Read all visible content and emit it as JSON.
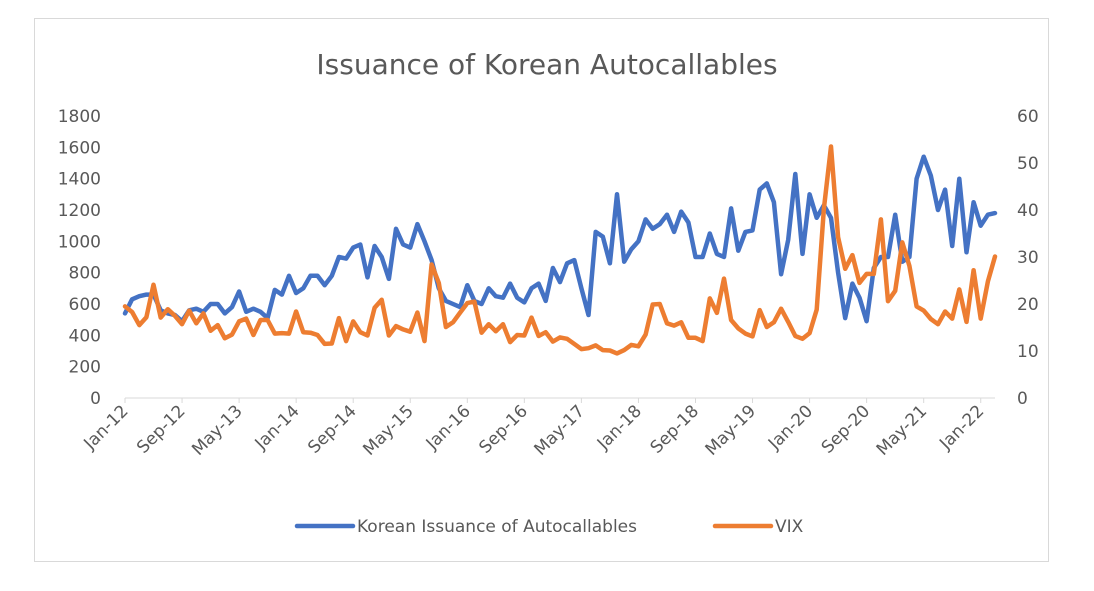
{
  "chart_data": {
    "type": "line",
    "title": "Issuance of Korean Autocallables",
    "xlabel": "",
    "ylabel": "",
    "y_left": {
      "range": [
        0,
        1800
      ],
      "ticks": [
        0,
        200,
        400,
        600,
        800,
        1000,
        1200,
        1400,
        1600,
        1800
      ]
    },
    "y_right": {
      "range": [
        0,
        60
      ],
      "ticks": [
        0,
        10,
        20,
        30,
        40,
        50,
        60
      ]
    },
    "x_tick_labels": [
      "Jan-12",
      "Sep-12",
      "May-13",
      "Jan-14",
      "Sep-14",
      "May-15",
      "Jan-16",
      "Sep-16",
      "May-17",
      "Jan-18",
      "Sep-18",
      "May-19",
      "Jan-20",
      "Sep-20",
      "May-21",
      "Jan-22"
    ],
    "x_start": "Jan-12",
    "x_end": "Mar-22",
    "grid": false,
    "legend_position": "bottom",
    "series": [
      {
        "name": "Korean Issuance of Autocallables",
        "axis": "left",
        "color": "#4472c4",
        "values": [
          540,
          630,
          650,
          660,
          660,
          560,
          540,
          530,
          490,
          560,
          570,
          550,
          600,
          600,
          540,
          580,
          680,
          550,
          570,
          550,
          510,
          690,
          660,
          780,
          670,
          700,
          780,
          780,
          720,
          780,
          900,
          890,
          960,
          980,
          770,
          970,
          900,
          760,
          1080,
          980,
          960,
          1110,
          1000,
          880,
          700,
          620,
          600,
          580,
          720,
          620,
          600,
          700,
          650,
          640,
          730,
          640,
          610,
          700,
          730,
          620,
          830,
          740,
          860,
          880,
          700,
          530,
          1060,
          1030,
          860,
          1300,
          870,
          950,
          1000,
          1140,
          1080,
          1110,
          1170,
          1060,
          1190,
          1120,
          900,
          900,
          1050,
          920,
          900,
          1210,
          940,
          1060,
          1070,
          1330,
          1370,
          1250,
          790,
          1010,
          1430,
          920,
          1300,
          1150,
          1230,
          1150,
          800,
          510,
          730,
          640,
          490,
          830,
          900,
          900,
          1170,
          870,
          900,
          1400,
          1540,
          1420,
          1200,
          1330,
          970,
          1400,
          930,
          1250,
          1100,
          1170,
          1180
        ]
      },
      {
        "name": "VIX",
        "axis": "right",
        "color": "#ed7d31",
        "values": [
          19.5,
          18.3,
          15.5,
          17.2,
          24.1,
          17.1,
          18.9,
          17.5,
          15.7,
          18.6,
          15.9,
          18.0,
          14.3,
          15.5,
          12.7,
          13.5,
          16.3,
          16.9,
          13.4,
          16.6,
          16.6,
          13.7,
          13.8,
          13.7,
          18.4,
          14.0,
          13.9,
          13.4,
          11.5,
          11.6,
          17.0,
          12.1,
          16.3,
          14.0,
          13.3,
          19.2,
          20.9,
          13.3,
          15.3,
          14.6,
          14.1,
          18.2,
          12.1,
          28.4,
          24.5,
          15.1,
          16.1,
          18.2,
          20.2,
          20.5,
          13.9,
          15.7,
          14.2,
          15.7,
          11.9,
          13.4,
          13.3,
          17.1,
          13.2,
          14.0,
          11.99,
          12.9,
          12.6,
          11.5,
          10.4,
          10.6,
          11.2,
          10.2,
          10.1,
          9.5,
          10.2,
          11.3,
          11.0,
          13.5,
          19.9,
          20.0,
          15.9,
          15.4,
          16.1,
          12.8,
          12.8,
          12.1,
          21.2,
          18.1,
          25.4,
          16.6,
          14.8,
          13.7,
          13.1,
          18.7,
          15.1,
          16.1,
          19.0,
          16.2,
          13.2,
          12.6,
          13.8,
          18.8,
          40.3,
          53.5,
          34.2,
          27.5,
          30.4,
          24.5,
          26.4,
          26.4,
          38.0,
          20.6,
          22.8,
          33.1,
          28.1,
          19.5,
          18.6,
          16.8,
          15.7,
          18.4,
          16.9,
          23.1,
          16.2,
          27.2,
          16.9,
          24.8,
          30.1
        ]
      }
    ]
  }
}
